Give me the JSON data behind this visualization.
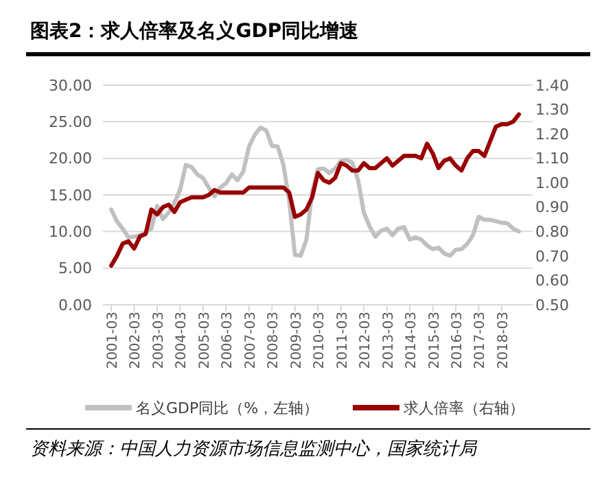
{
  "chart_data": {
    "type": "line",
    "title": "图表2：求人倍率及名义GDP同比增速",
    "categories": [
      "2001-03",
      null,
      null,
      null,
      "2002-03",
      null,
      null,
      null,
      "2003-03",
      null,
      null,
      null,
      "2004-03",
      null,
      null,
      null,
      "2005-03",
      null,
      null,
      null,
      "2006-03",
      null,
      null,
      null,
      "2007-03",
      null,
      null,
      null,
      "2008-03",
      null,
      null,
      null,
      "2009-03",
      null,
      null,
      null,
      "2010-03",
      null,
      null,
      null,
      "2011-03",
      null,
      null,
      null,
      "2012-03",
      null,
      null,
      null,
      "2013-03",
      null,
      null,
      null,
      "2014-03",
      null,
      null,
      null,
      "2015-03",
      null,
      null,
      null,
      "2016-03",
      null,
      null,
      null,
      "2017-03",
      null,
      null,
      null,
      "2018-03",
      null,
      null,
      null
    ],
    "series": [
      {
        "name": "名义GDP同比（%，左轴）",
        "color": "#c0c0c0",
        "axis": "y",
        "values": [
          13.0,
          11.4,
          10.4,
          9.2,
          9.3,
          9.5,
          9.9,
          10.4,
          13.5,
          11.7,
          12.6,
          13.9,
          15.7,
          19.1,
          18.8,
          17.8,
          17.3,
          16.0,
          14.8,
          16.0,
          16.6,
          17.8,
          17.0,
          18.2,
          21.6,
          23.2,
          24.2,
          23.8,
          21.7,
          21.6,
          19.1,
          14.2,
          6.8,
          6.7,
          8.9,
          15.4,
          18.5,
          18.6,
          18.0,
          18.6,
          19.6,
          19.8,
          19.4,
          17.0,
          12.6,
          10.7,
          9.3,
          10.1,
          10.4,
          9.5,
          10.4,
          10.6,
          8.9,
          9.2,
          8.9,
          8.1,
          7.6,
          7.8,
          7.0,
          6.7,
          7.5,
          7.6,
          8.3,
          9.5,
          12.0,
          11.6,
          11.6,
          11.4,
          11.2,
          11.1,
          10.4,
          10.0
        ]
      },
      {
        "name": "求人倍率（右轴）",
        "color": "#990000",
        "axis": "y2",
        "values": [
          0.66,
          0.7,
          0.75,
          0.76,
          0.73,
          0.78,
          0.79,
          0.89,
          0.87,
          0.9,
          0.91,
          0.88,
          0.92,
          0.93,
          0.94,
          0.94,
          0.94,
          0.95,
          0.97,
          0.96,
          0.96,
          0.96,
          0.96,
          0.96,
          0.98,
          0.98,
          0.98,
          0.98,
          0.98,
          0.98,
          0.98,
          0.96,
          0.86,
          0.87,
          0.89,
          0.94,
          1.04,
          1.01,
          1.0,
          1.02,
          1.08,
          1.07,
          1.05,
          1.05,
          1.08,
          1.06,
          1.06,
          1.08,
          1.1,
          1.07,
          1.09,
          1.11,
          1.11,
          1.11,
          1.1,
          1.16,
          1.12,
          1.06,
          1.09,
          1.1,
          1.07,
          1.05,
          1.1,
          1.13,
          1.13,
          1.11,
          1.17,
          1.23,
          1.24,
          1.24,
          1.25,
          1.28
        ]
      }
    ],
    "ylim": [
      0,
      30
    ],
    "yticks": [
      {
        "value": 0,
        "label": "0.00"
      },
      {
        "value": 5,
        "label": "5.00"
      },
      {
        "value": 10,
        "label": "10.00"
      },
      {
        "value": 15,
        "label": "15.00"
      },
      {
        "value": 20,
        "label": "20.00"
      },
      {
        "value": 25,
        "label": "25.00"
      },
      {
        "value": 30,
        "label": "30.00"
      }
    ],
    "y2lim": [
      0.5,
      1.4
    ],
    "y2ticks": [
      {
        "value": 0.5,
        "label": "0.50"
      },
      {
        "value": 0.6,
        "label": "0.60"
      },
      {
        "value": 0.7,
        "label": "0.70"
      },
      {
        "value": 0.8,
        "label": "0.80"
      },
      {
        "value": 0.9,
        "label": "0.90"
      },
      {
        "value": 1.0,
        "label": "1.00"
      },
      {
        "value": 1.1,
        "label": "1.10"
      },
      {
        "value": 1.2,
        "label": "1.20"
      },
      {
        "value": 1.3,
        "label": "1.30"
      },
      {
        "value": 1.4,
        "label": "1.40"
      }
    ],
    "grid": "y",
    "legend": "bottom",
    "annotations": [
      "资料来源：中国人力资源市场信息监测中心，国家统计局"
    ]
  }
}
